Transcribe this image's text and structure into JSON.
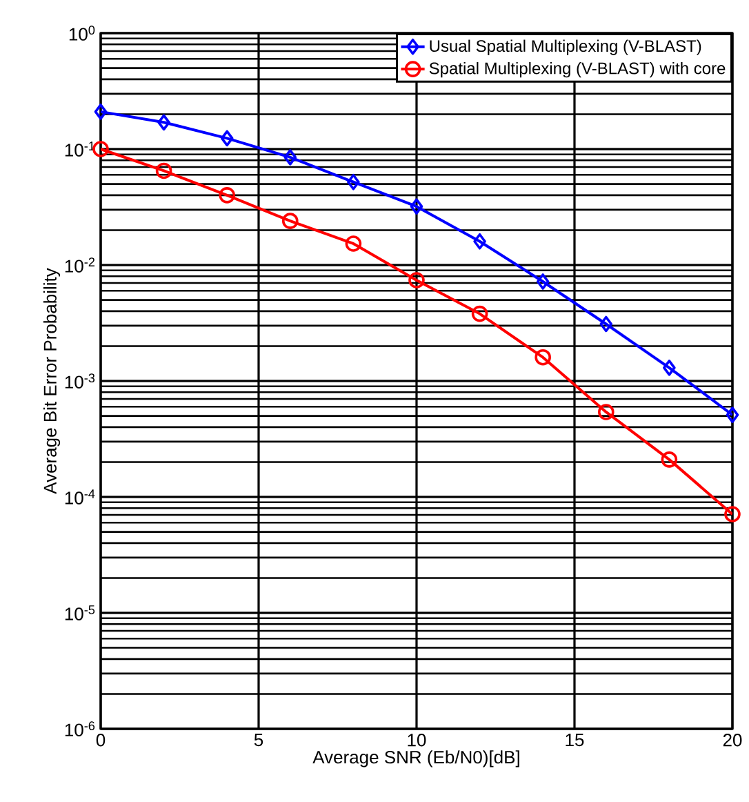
{
  "chart_data": {
    "type": "line",
    "xlabel": "Average SNR (Eb/N0)[dB]",
    "ylabel": "Average Bit Error Probability",
    "x": [
      0,
      2,
      4,
      6,
      8,
      10,
      12,
      14,
      16,
      18,
      20
    ],
    "series": [
      {
        "name": "Usual Spatial Multiplexing (V-BLAST)",
        "color": "#0000ff",
        "marker": "diamond",
        "values": [
          0.21,
          0.17,
          0.124,
          0.085,
          0.052,
          0.032,
          0.016,
          0.0072,
          0.0031,
          0.0013,
          0.00051
        ]
      },
      {
        "name": "Spatial Multiplexing (V-BLAST) with core",
        "color": "#ff0000",
        "marker": "circle",
        "values": [
          0.1,
          0.065,
          0.04,
          0.024,
          0.0153,
          0.0074,
          0.0038,
          0.0016,
          0.00054,
          0.00021,
          7.1e-05
        ]
      }
    ],
    "xlim": [
      0,
      20
    ],
    "ylim": [
      1e-06,
      1
    ],
    "log": "y",
    "xticks": [
      0,
      5,
      10,
      15,
      20
    ],
    "yticks": [
      {
        "value": 1e-06,
        "label": "10$^{-6}$"
      },
      {
        "value": 1e-05,
        "label": "10$^{-5}$"
      },
      {
        "value": 0.0001,
        "label": "10$^{-4}$"
      },
      {
        "value": 0.001,
        "label": "10$^{-3}$"
      },
      {
        "value": 0.01,
        "label": "10$^{-2}$"
      },
      {
        "value": 0.1,
        "label": "10$^{-1}$"
      },
      {
        "value": 1,
        "label": "10$^{0}$"
      }
    ],
    "grid": true,
    "legend": "top right",
    "line_style": "solid"
  }
}
